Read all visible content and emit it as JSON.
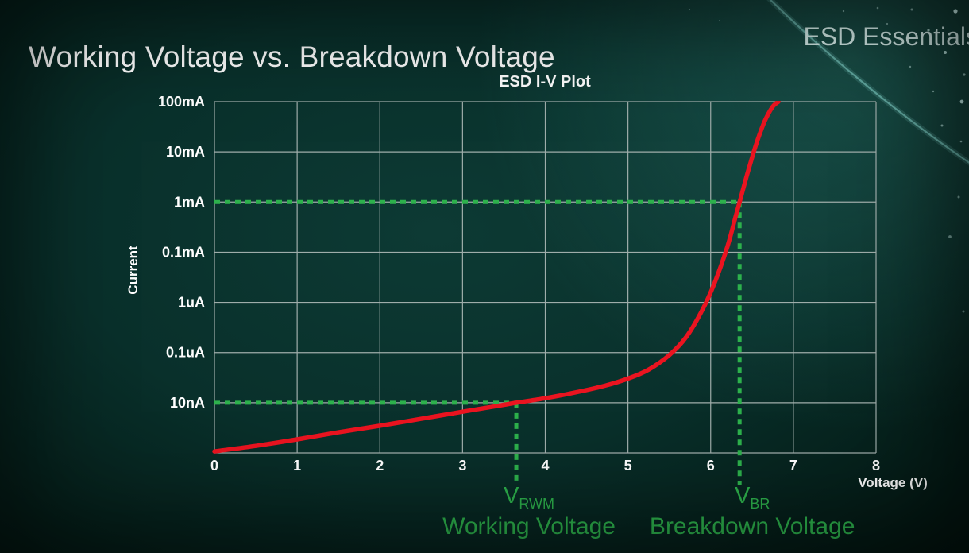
{
  "page": {
    "title": "Working Voltage vs. Breakdown Voltage",
    "brand": "ESD Essentials"
  },
  "chart_data": {
    "type": "line",
    "title": "ESD I-V Plot",
    "xlabel": "Voltage (V)",
    "ylabel": "Current",
    "xlim": [
      0,
      8
    ],
    "x_ticks": [
      0,
      1,
      2,
      3,
      4,
      5,
      6,
      7,
      8
    ],
    "y_tick_labels": [
      "100mA",
      "10mA",
      "1mA",
      "0.1mA",
      "1uA",
      "0.1uA",
      "10nA"
    ],
    "y_axis_note": "log-style current axis; 8 horizontal gridlines; bottom gridline unlabeled; rows indexed 0 (bottom) to 7 (top = 100mA)",
    "grid": true,
    "legend": "none",
    "series": [
      {
        "name": "ESD device I-V curve",
        "color": "#ea1420",
        "points_voltage_row": [
          [
            0,
            0.03
          ],
          [
            0.5,
            0.14
          ],
          [
            1,
            0.27
          ],
          [
            1.5,
            0.41
          ],
          [
            2,
            0.54
          ],
          [
            2.5,
            0.68
          ],
          [
            3,
            0.82
          ],
          [
            3.4,
            0.93
          ],
          [
            3.65,
            1.0
          ],
          [
            4,
            1.09
          ],
          [
            4.35,
            1.2
          ],
          [
            4.7,
            1.33
          ],
          [
            5,
            1.48
          ],
          [
            5.25,
            1.66
          ],
          [
            5.5,
            1.95
          ],
          [
            5.7,
            2.3
          ],
          [
            5.9,
            2.85
          ],
          [
            6.05,
            3.4
          ],
          [
            6.2,
            4.1
          ],
          [
            6.3,
            4.7
          ],
          [
            6.35,
            5.0
          ],
          [
            6.45,
            5.6
          ],
          [
            6.55,
            6.15
          ],
          [
            6.65,
            6.6
          ],
          [
            6.75,
            6.9
          ],
          [
            6.82,
            7.0
          ]
        ]
      }
    ],
    "markers": [
      {
        "name": "VRWM",
        "symbol": "V",
        "subscript": "RWM",
        "caption": "Working Voltage",
        "voltage": 3.65,
        "current_row": 1,
        "current_label": "10nA",
        "color": "#2db14c"
      },
      {
        "name": "VBR",
        "symbol": "V",
        "subscript": "BR",
        "caption": "Breakdown Voltage",
        "voltage": 6.35,
        "current_row": 5,
        "current_label": "1mA",
        "color": "#2db14c"
      }
    ]
  }
}
